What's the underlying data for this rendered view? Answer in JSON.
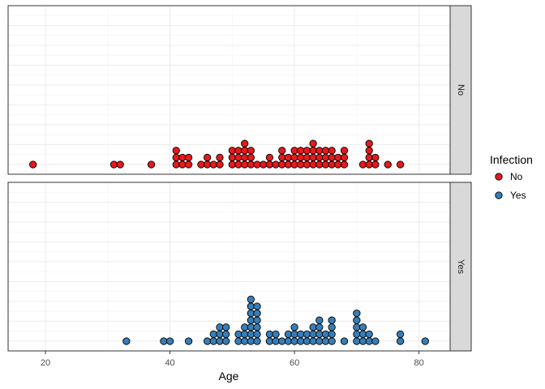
{
  "chart_data": {
    "type": "dotplot",
    "xlabel": "Age",
    "ylabel": "",
    "title": "",
    "xlim": [
      14,
      85
    ],
    "x_ticks": [
      20,
      40,
      60,
      80
    ],
    "x_tick_labels": [
      "20",
      "40",
      "60",
      "80"
    ],
    "facet_labels": [
      "No",
      "Yes"
    ],
    "legend": {
      "title": "Infection",
      "position": "right",
      "entries": [
        {
          "label": "No",
          "color": "#E41A1C"
        },
        {
          "label": "Yes",
          "color": "#377EB8"
        }
      ]
    },
    "grid": true,
    "series": [
      {
        "name": "No",
        "color": "#E41A1C",
        "stacks": [
          [
            18,
            1
          ],
          [
            31,
            1
          ],
          [
            32,
            1
          ],
          [
            37,
            1
          ],
          [
            41,
            3
          ],
          [
            42,
            2
          ],
          [
            43,
            2
          ],
          [
            45,
            1
          ],
          [
            46,
            2
          ],
          [
            47,
            1
          ],
          [
            48,
            2
          ],
          [
            50,
            3
          ],
          [
            51,
            3
          ],
          [
            52,
            4
          ],
          [
            53,
            3
          ],
          [
            54,
            1
          ],
          [
            55,
            1
          ],
          [
            56,
            2
          ],
          [
            57,
            1
          ],
          [
            58,
            3
          ],
          [
            59,
            2
          ],
          [
            60,
            3
          ],
          [
            61,
            3
          ],
          [
            62,
            3
          ],
          [
            63,
            4
          ],
          [
            64,
            3
          ],
          [
            65,
            3
          ],
          [
            66,
            3
          ],
          [
            67,
            2
          ],
          [
            68,
            3
          ],
          [
            71,
            1
          ],
          [
            72,
            4
          ],
          [
            73,
            2
          ],
          [
            75,
            1
          ],
          [
            77,
            1
          ]
        ]
      },
      {
        "name": "Yes",
        "color": "#377EB8",
        "stacks": [
          [
            33,
            1
          ],
          [
            39,
            1
          ],
          [
            40,
            1
          ],
          [
            43,
            1
          ],
          [
            46,
            1
          ],
          [
            47,
            2
          ],
          [
            48,
            3
          ],
          [
            49,
            3
          ],
          [
            51,
            2
          ],
          [
            52,
            3
          ],
          [
            53,
            7
          ],
          [
            54,
            6
          ],
          [
            56,
            2
          ],
          [
            57,
            2
          ],
          [
            58,
            1
          ],
          [
            59,
            2
          ],
          [
            60,
            3
          ],
          [
            61,
            2
          ],
          [
            62,
            2
          ],
          [
            63,
            3
          ],
          [
            64,
            4
          ],
          [
            65,
            2
          ],
          [
            66,
            4
          ],
          [
            68,
            1
          ],
          [
            70,
            5
          ],
          [
            71,
            3
          ],
          [
            72,
            2
          ],
          [
            73,
            1
          ],
          [
            77,
            2
          ],
          [
            81,
            1
          ]
        ]
      }
    ]
  }
}
